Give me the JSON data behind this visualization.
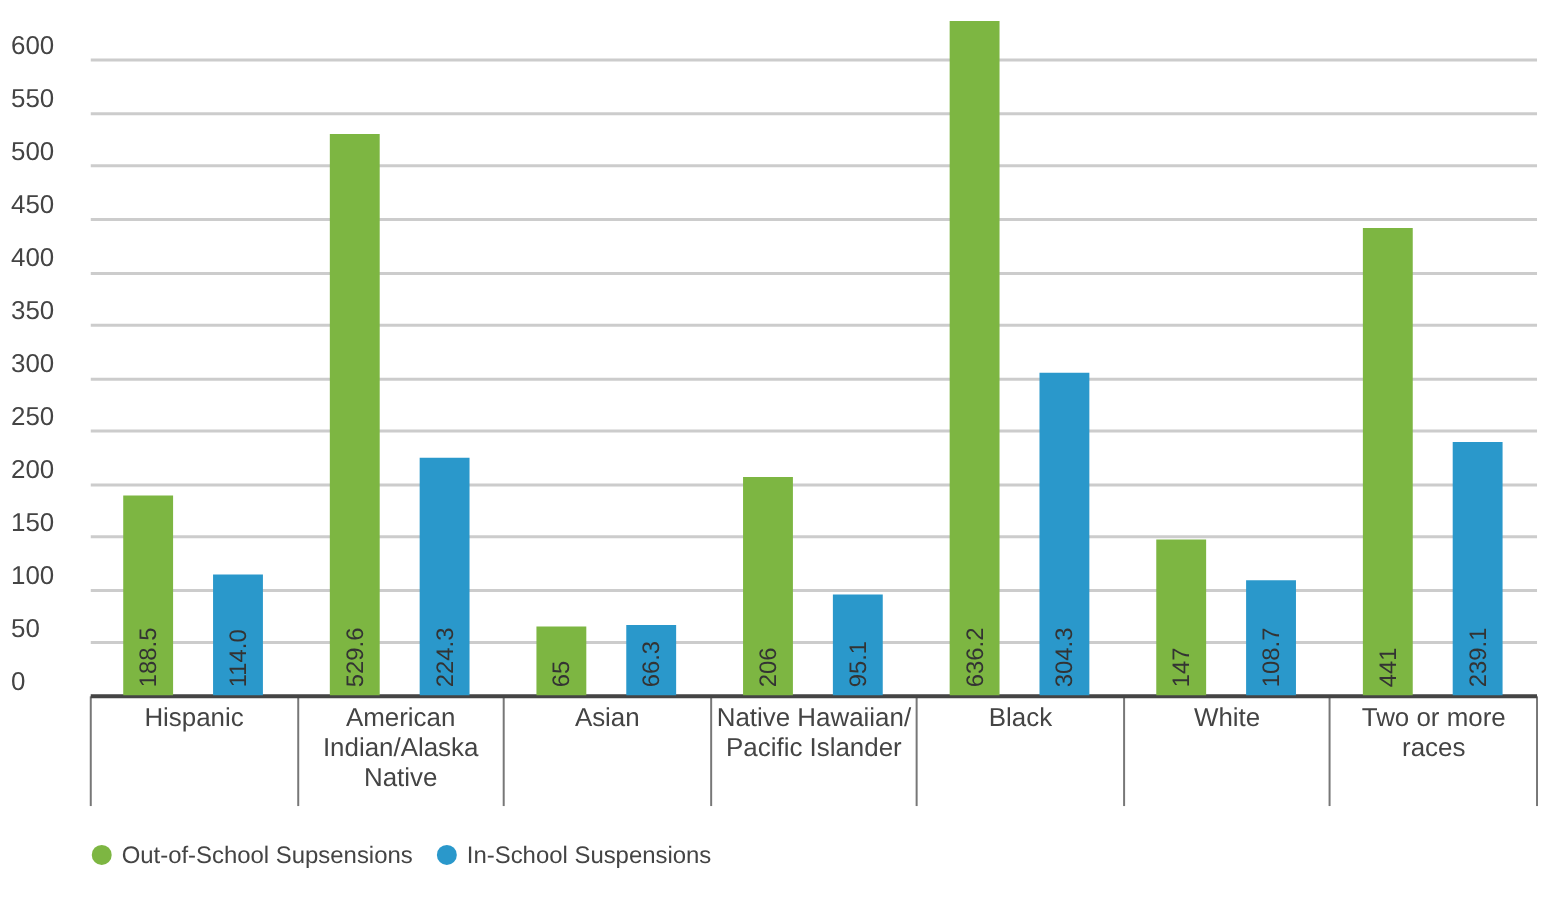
{
  "chart_data": {
    "type": "bar",
    "categories": [
      "Hispanic",
      "American Indian/Alaska Native",
      "Asian",
      "Native Hawaiian/ Pacific Islander",
      "Black",
      "White",
      "Two or more races"
    ],
    "series": [
      {
        "name": "Out-of-School Supsensions",
        "color": "#7db642",
        "values": [
          188.5,
          529.6,
          65,
          206,
          636.2,
          147,
          441
        ],
        "value_labels": [
          "188.5",
          "529.6",
          "65",
          "206",
          "636.2",
          "147",
          "441"
        ]
      },
      {
        "name": "In-School Suspensions",
        "color": "#2a98cb",
        "values": [
          114.0,
          224.3,
          66.3,
          95.1,
          304.3,
          108.7,
          239.1
        ],
        "value_labels": [
          "114.0",
          "224.3",
          "66.3",
          "95.1",
          "304.3",
          "108.7",
          "239.1"
        ]
      }
    ],
    "ylim": [
      0,
      640
    ],
    "yticks": [
      0,
      50,
      100,
      150,
      200,
      250,
      300,
      350,
      400,
      450,
      500,
      550,
      600
    ],
    "grid": "y",
    "legend": "bottom"
  }
}
